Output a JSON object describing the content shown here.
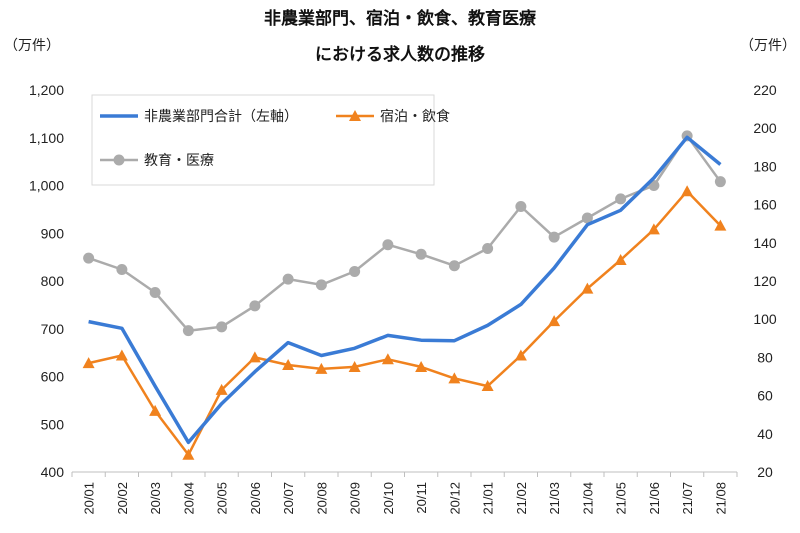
{
  "chart_data": {
    "type": "line",
    "title_lines": [
      "非農業部門、宿泊・飲食、教育医療",
      "における求人数の推移"
    ],
    "left_unit": "（万件）",
    "right_unit": "（万件）",
    "categories": [
      "20/01",
      "20/02",
      "20/03",
      "20/04",
      "20/05",
      "20/06",
      "20/07",
      "20/08",
      "20/09",
      "20/10",
      "20/11",
      "20/12",
      "21/01",
      "21/02",
      "21/03",
      "21/04",
      "21/05",
      "21/06",
      "21/07",
      "21/08"
    ],
    "y_left": {
      "min": 400,
      "max": 1200,
      "ticks": [
        "400",
        "500",
        "600",
        "700",
        "800",
        "900",
        "1,000",
        "1,100",
        "1,200"
      ],
      "tick_values": [
        400,
        500,
        600,
        700,
        800,
        900,
        1000,
        1100,
        1200
      ]
    },
    "y_right": {
      "min": 20,
      "max": 220,
      "ticks": [
        "20",
        "40",
        "60",
        "80",
        "100",
        "120",
        "140",
        "160",
        "180",
        "200",
        "220"
      ],
      "tick_values": [
        20,
        40,
        60,
        80,
        100,
        120,
        140,
        160,
        180,
        200,
        220
      ]
    },
    "grid": false,
    "legend_position": "top-left",
    "series": [
      {
        "name": "非農業部門合計（左軸）",
        "axis": "left",
        "color": "#3a7bd5",
        "marker": "none",
        "values": [
          715,
          701,
          580,
          462,
          543,
          610,
          671,
          644,
          659,
          686,
          676,
          675,
          707,
          751,
          827,
          918,
          948,
          1016,
          1101,
          1044
        ]
      },
      {
        "name": "宿泊・飲食",
        "axis": "right",
        "color": "#f0821e",
        "marker": "triangle",
        "values": [
          77,
          81,
          52,
          29,
          63,
          80,
          76,
          74,
          75,
          79,
          75,
          69,
          65,
          81,
          99,
          116,
          131,
          147,
          167,
          149
        ]
      },
      {
        "name": "教育・医療",
        "axis": "right",
        "color": "#ababab",
        "marker": "circle",
        "values": [
          132,
          126,
          114,
          94,
          96,
          107,
          121,
          118,
          125,
          139,
          134,
          128,
          137,
          159,
          143,
          153,
          163,
          170,
          196,
          172
        ]
      }
    ]
  }
}
